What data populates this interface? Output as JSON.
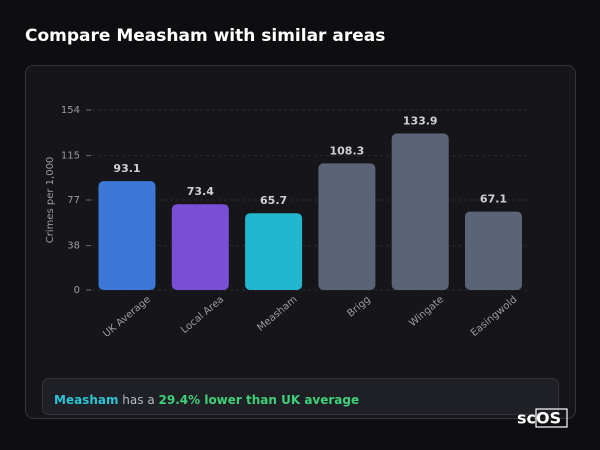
{
  "chart_data": {
    "type": "bar",
    "title": "Compare Measham with similar areas",
    "y_label": "Crimes per 1,000",
    "categories": [
      "UK Average",
      "Local Area",
      "Measham",
      "Brigg",
      "Wingate",
      "Easingwold"
    ],
    "values": [
      93.1,
      73.4,
      65.7,
      108.3,
      133.9,
      67.1
    ],
    "colors": [
      "#3b78d8",
      "#7a4fd6",
      "#22b7cf",
      "#5b6477",
      "#5b6477",
      "#5b6477"
    ],
    "ylim": [
      0,
      154
    ],
    "yticks": [
      0,
      38,
      77,
      115,
      154
    ],
    "grid": true
  },
  "summary": {
    "area": "Measham",
    "text": "has a",
    "highlight": "29.4% lower than UK average"
  },
  "brand": "scOS"
}
